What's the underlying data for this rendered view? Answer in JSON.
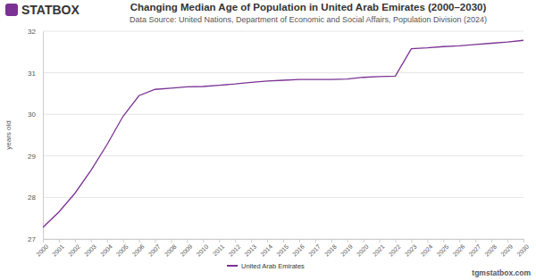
{
  "chart_data": {
    "type": "line",
    "title": "Changing Median Age of Population in United Arab Emirates (2000–2030)",
    "subtitle": "Data Source: United Nations, Department of Economic and Social Affairs, Population Division (2024)",
    "y_label": "years old",
    "annotations": [
      "STATBOX",
      "tgmstatbox.com"
    ],
    "categories": [
      "2000",
      "2001",
      "2002",
      "2003",
      "2004",
      "2005",
      "2006",
      "2007",
      "2008",
      "2009",
      "2010",
      "2011",
      "2012",
      "2013",
      "2014",
      "2015",
      "2016",
      "2017",
      "2018",
      "2019",
      "2020",
      "2021",
      "2022",
      "2023",
      "2024",
      "2025",
      "2026",
      "2027",
      "2028",
      "2029",
      "2030"
    ],
    "series": [
      {
        "name": "United Arab Emirates",
        "color": "#7b3294",
        "values": [
          27.28,
          27.65,
          28.1,
          28.65,
          29.27,
          29.95,
          30.45,
          30.6,
          30.63,
          30.66,
          30.67,
          30.7,
          30.73,
          30.77,
          30.8,
          30.82,
          30.84,
          30.84,
          30.84,
          30.85,
          30.89,
          30.91,
          30.92,
          31.58,
          31.6,
          31.63,
          31.65,
          31.68,
          31.71,
          31.74,
          31.78
        ]
      }
    ],
    "ylim": [
      27,
      32
    ],
    "yticks": [
      27,
      28,
      29,
      30,
      31,
      32
    ],
    "grid": true,
    "legend": "bottom"
  }
}
